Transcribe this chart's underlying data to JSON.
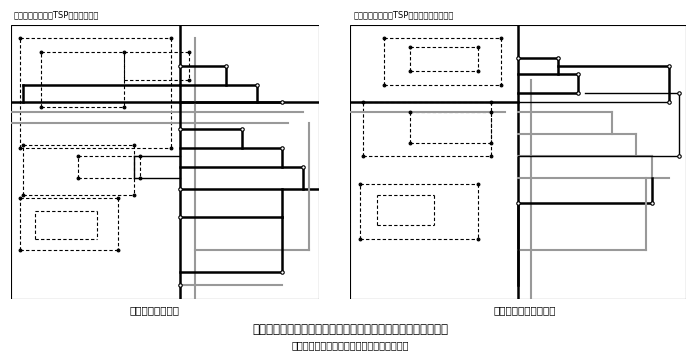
{
  "title_left": "牧草の刈取計画（TSP）　班別実績",
  "title_right": "牧草の刈取計画（TSP）　班別時期別計画",
  "caption_left": "実績における経路",
  "caption_right": "計画型３における経路",
  "fig_caption": "図２　一番草の収穫作業の実績と計画における作業経路の比較",
  "note": "注）実線は１班、点線は２班の経路を示す。",
  "bg_color": "#ffffff"
}
